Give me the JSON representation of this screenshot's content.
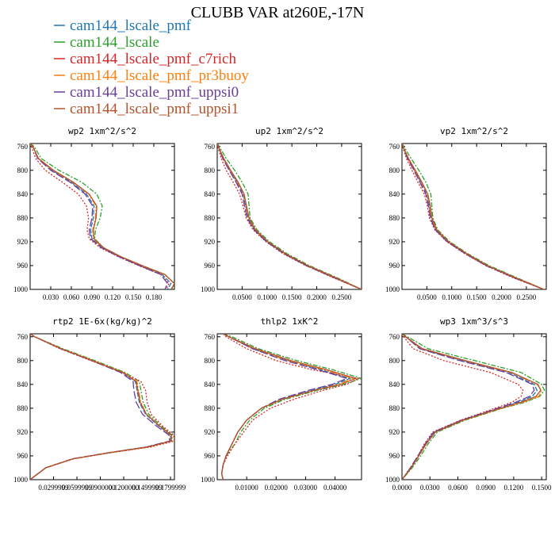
{
  "figure": {
    "title": "CLUBB VAR at260E,-17N"
  },
  "legend": [
    {
      "name": "cam144_lscale_pmf",
      "color": "#1f77b4"
    },
    {
      "name": "cam144_lscale",
      "color": "#2ca02c"
    },
    {
      "name": "cam144_lscale_pmf_c7rich",
      "color": "#d62728"
    },
    {
      "name": "cam144_lscale_pmf_pr3buoy",
      "color": "#ff7f0e"
    },
    {
      "name": "cam144_lscale_pmf_uppsi0",
      "color": "#6a3d9a"
    },
    {
      "name": "cam144_lscale_pmf_uppsi1",
      "color": "#b5532a"
    }
  ],
  "chart_data": [
    {
      "type": "line",
      "title": "wp2   1xm^2/s^2",
      "xlim": [
        0,
        0.21
      ],
      "ylim": [
        1000,
        755
      ],
      "xticks": [
        0.03,
        0.06,
        0.09,
        0.12,
        0.15,
        0.18
      ],
      "xtick_labels": [
        "0.030",
        "0.060",
        "0.090",
        "0.120",
        "0.150",
        "0.180"
      ],
      "yticks": [
        760,
        800,
        840,
        880,
        920,
        960,
        1000
      ],
      "ytick_labels": [
        "760",
        "800",
        "840",
        "880",
        "920",
        "960",
        "1000"
      ],
      "y": [
        755,
        760,
        780,
        800,
        820,
        840,
        860,
        880,
        900,
        915,
        930,
        945,
        960,
        975,
        990,
        1000
      ],
      "series": [
        {
          "name": "cam144_lscale_pmf",
          "x": [
            0.0,
            0.004,
            0.012,
            0.032,
            0.06,
            0.082,
            0.093,
            0.092,
            0.088,
            0.09,
            0.105,
            0.13,
            0.16,
            0.192,
            0.205,
            0.2
          ]
        },
        {
          "name": "cam144_lscale",
          "x": [
            0.0,
            0.006,
            0.016,
            0.042,
            0.075,
            0.097,
            0.105,
            0.102,
            0.095,
            0.094,
            0.107,
            0.132,
            0.163,
            0.196,
            0.21,
            0.205
          ]
        },
        {
          "name": "cam144_lscale_pmf_c7rich",
          "x": [
            0.0,
            0.002,
            0.008,
            0.022,
            0.047,
            0.07,
            0.082,
            0.085,
            0.083,
            0.086,
            0.102,
            0.128,
            0.158,
            0.19,
            0.202,
            0.198
          ]
        },
        {
          "name": "cam144_lscale_pmf_pr3buoy",
          "x": [
            0.0,
            0.004,
            0.012,
            0.033,
            0.062,
            0.085,
            0.096,
            0.095,
            0.091,
            0.092,
            0.106,
            0.131,
            0.162,
            0.195,
            0.21,
            0.206
          ]
        },
        {
          "name": "cam144_lscale_pmf_uppsi0",
          "x": [
            0.0,
            0.004,
            0.011,
            0.03,
            0.058,
            0.08,
            0.091,
            0.09,
            0.086,
            0.088,
            0.104,
            0.129,
            0.159,
            0.19,
            0.2,
            0.196
          ]
        },
        {
          "name": "cam144_lscale_pmf_uppsi1",
          "x": [
            0.0,
            0.004,
            0.012,
            0.034,
            0.063,
            0.086,
            0.097,
            0.096,
            0.092,
            0.093,
            0.107,
            0.132,
            0.163,
            0.196,
            0.21,
            0.206
          ]
        }
      ]
    },
    {
      "type": "line",
      "title": "up2   1xm^2/s^2",
      "xlim": [
        0,
        0.29
      ],
      "ylim": [
        1000,
        755
      ],
      "xticks": [
        0.05,
        0.1,
        0.15,
        0.2,
        0.25
      ],
      "xtick_labels": [
        "0.0500",
        "0.1000",
        "0.1500",
        "0.2000",
        "0.2500"
      ],
      "yticks": [
        760,
        800,
        840,
        880,
        920,
        960,
        1000
      ],
      "ytick_labels": [
        "760",
        "800",
        "840",
        "880",
        "920",
        "960",
        "1000"
      ],
      "y": [
        755,
        760,
        780,
        800,
        820,
        840,
        860,
        880,
        900,
        920,
        940,
        960,
        980,
        1000
      ],
      "series": [
        {
          "name": "cam144_lscale_pmf",
          "x": [
            0.0,
            0.002,
            0.012,
            0.025,
            0.04,
            0.052,
            0.057,
            0.062,
            0.075,
            0.1,
            0.135,
            0.18,
            0.235,
            0.29
          ]
        },
        {
          "name": "cam144_lscale",
          "x": [
            0.0,
            0.004,
            0.018,
            0.035,
            0.05,
            0.062,
            0.064,
            0.066,
            0.08,
            0.105,
            0.14,
            0.185,
            0.24,
            0.29
          ]
        },
        {
          "name": "cam144_lscale_pmf_c7rich",
          "x": [
            0.0,
            0.001,
            0.008,
            0.018,
            0.032,
            0.045,
            0.052,
            0.058,
            0.072,
            0.098,
            0.132,
            0.178,
            0.232,
            0.29
          ]
        },
        {
          "name": "cam144_lscale_pmf_pr3buoy",
          "x": [
            0.0,
            0.002,
            0.012,
            0.026,
            0.041,
            0.053,
            0.058,
            0.063,
            0.076,
            0.101,
            0.136,
            0.181,
            0.236,
            0.29
          ]
        },
        {
          "name": "cam144_lscale_pmf_uppsi0",
          "x": [
            0.0,
            0.002,
            0.011,
            0.024,
            0.038,
            0.05,
            0.055,
            0.06,
            0.074,
            0.099,
            0.134,
            0.179,
            0.234,
            0.29
          ]
        },
        {
          "name": "cam144_lscale_pmf_uppsi1",
          "x": [
            0.0,
            0.002,
            0.013,
            0.027,
            0.042,
            0.054,
            0.059,
            0.064,
            0.077,
            0.102,
            0.137,
            0.182,
            0.237,
            0.29
          ]
        }
      ]
    },
    {
      "type": "line",
      "title": "vp2   1xm^2/s^2",
      "xlim": [
        0,
        0.29
      ],
      "ylim": [
        1000,
        755
      ],
      "xticks": [
        0.05,
        0.1,
        0.15,
        0.2,
        0.25
      ],
      "xtick_labels": [
        "0.0500",
        "0.1000",
        "0.1500",
        "0.2000",
        "0.2500"
      ],
      "yticks": [
        760,
        800,
        840,
        880,
        920,
        960,
        1000
      ],
      "ytick_labels": [
        "760",
        "800",
        "840",
        "880",
        "920",
        "960",
        "1000"
      ],
      "y": [
        755,
        760,
        780,
        800,
        820,
        840,
        860,
        880,
        900,
        920,
        940,
        960,
        980,
        1000
      ],
      "series": [
        {
          "name": "cam144_lscale_pmf",
          "x": [
            0.0,
            0.002,
            0.012,
            0.025,
            0.038,
            0.05,
            0.055,
            0.058,
            0.068,
            0.092,
            0.128,
            0.17,
            0.225,
            0.285
          ]
        },
        {
          "name": "cam144_lscale",
          "x": [
            0.0,
            0.004,
            0.018,
            0.034,
            0.048,
            0.058,
            0.06,
            0.062,
            0.072,
            0.096,
            0.132,
            0.175,
            0.23,
            0.285
          ]
        },
        {
          "name": "cam144_lscale_pmf_c7rich",
          "x": [
            0.0,
            0.001,
            0.009,
            0.02,
            0.032,
            0.045,
            0.051,
            0.055,
            0.066,
            0.09,
            0.126,
            0.168,
            0.222,
            0.285
          ]
        },
        {
          "name": "cam144_lscale_pmf_pr3buoy",
          "x": [
            0.0,
            0.002,
            0.012,
            0.026,
            0.039,
            0.051,
            0.056,
            0.059,
            0.069,
            0.093,
            0.129,
            0.171,
            0.226,
            0.285
          ]
        },
        {
          "name": "cam144_lscale_pmf_uppsi0",
          "x": [
            0.0,
            0.002,
            0.011,
            0.024,
            0.036,
            0.048,
            0.053,
            0.057,
            0.067,
            0.091,
            0.127,
            0.169,
            0.224,
            0.285
          ]
        },
        {
          "name": "cam144_lscale_pmf_uppsi1",
          "x": [
            0.0,
            0.002,
            0.013,
            0.027,
            0.04,
            0.052,
            0.057,
            0.06,
            0.07,
            0.094,
            0.13,
            0.172,
            0.227,
            0.285
          ]
        }
      ]
    },
    {
      "type": "line",
      "title": "rtp2   1E-6x(kg/kg)^2",
      "xlim": [
        0,
        0.185
      ],
      "ylim": [
        1000,
        755
      ],
      "xticks": [
        0.03,
        0.06,
        0.09,
        0.12,
        0.15,
        0.18
      ],
      "xtick_labels": [
        "0.0299999",
        "0.0599999",
        "0.0900000",
        "0.1200000",
        "0.1499999",
        "0.1799999"
      ],
      "yticks": [
        760,
        800,
        840,
        880,
        920,
        960,
        1000
      ],
      "ytick_labels": [
        "760",
        "800",
        "840",
        "880",
        "920",
        "960",
        "1000"
      ],
      "y": [
        755,
        760,
        780,
        800,
        820,
        835,
        850,
        870,
        890,
        910,
        925,
        935,
        945,
        955,
        965,
        980,
        995,
        1000
      ],
      "series": [
        {
          "name": "cam144_lscale_pmf",
          "x": [
            0.0,
            0.006,
            0.04,
            0.08,
            0.118,
            0.135,
            0.137,
            0.14,
            0.148,
            0.165,
            0.18,
            0.18,
            0.15,
            0.1,
            0.055,
            0.02,
            0.005,
            0.0
          ]
        },
        {
          "name": "cam144_lscale",
          "x": [
            0.0,
            0.006,
            0.042,
            0.083,
            0.122,
            0.14,
            0.142,
            0.145,
            0.152,
            0.168,
            0.182,
            0.182,
            0.152,
            0.1,
            0.055,
            0.02,
            0.005,
            0.0
          ]
        },
        {
          "name": "cam144_lscale_pmf_c7rich",
          "x": [
            0.0,
            0.006,
            0.038,
            0.078,
            0.118,
            0.142,
            0.148,
            0.15,
            0.155,
            0.17,
            0.184,
            0.185,
            0.155,
            0.102,
            0.056,
            0.02,
            0.005,
            0.0
          ]
        },
        {
          "name": "cam144_lscale_pmf_pr3buoy",
          "x": [
            0.0,
            0.006,
            0.04,
            0.081,
            0.12,
            0.137,
            0.139,
            0.142,
            0.149,
            0.166,
            0.18,
            0.181,
            0.151,
            0.1,
            0.055,
            0.02,
            0.005,
            0.0
          ]
        },
        {
          "name": "cam144_lscale_pmf_uppsi0",
          "x": [
            0.0,
            0.006,
            0.039,
            0.079,
            0.116,
            0.132,
            0.133,
            0.136,
            0.144,
            0.162,
            0.178,
            0.179,
            0.149,
            0.099,
            0.054,
            0.02,
            0.005,
            0.0
          ]
        },
        {
          "name": "cam144_lscale_pmf_uppsi1",
          "x": [
            0.0,
            0.006,
            0.04,
            0.08,
            0.119,
            0.136,
            0.138,
            0.141,
            0.149,
            0.166,
            0.181,
            0.181,
            0.151,
            0.1,
            0.055,
            0.02,
            0.005,
            0.0
          ]
        }
      ]
    },
    {
      "type": "line",
      "title": "thlp2   1xK^2",
      "xlim": [
        0,
        0.049
      ],
      "ylim": [
        1000,
        755
      ],
      "xticks": [
        0.01,
        0.02,
        0.03,
        0.04
      ],
      "xtick_labels": [
        "0.01000",
        "0.02000",
        "0.03000",
        "0.04000"
      ],
      "yticks": [
        760,
        800,
        840,
        880,
        920,
        960,
        1000
      ],
      "ytick_labels": [
        "760",
        "800",
        "840",
        "880",
        "920",
        "960",
        "1000"
      ],
      "y": [
        755,
        760,
        780,
        800,
        815,
        830,
        840,
        850,
        865,
        880,
        900,
        920,
        940,
        960,
        975,
        990,
        1000
      ],
      "series": [
        {
          "name": "cam144_lscale_pmf",
          "x": [
            0.002,
            0.004,
            0.012,
            0.024,
            0.035,
            0.045,
            0.04,
            0.032,
            0.022,
            0.015,
            0.01,
            0.007,
            0.005,
            0.003,
            0.002,
            0.0015,
            0.002
          ]
        },
        {
          "name": "cam144_lscale",
          "x": [
            0.002,
            0.005,
            0.014,
            0.027,
            0.039,
            0.049,
            0.043,
            0.034,
            0.023,
            0.016,
            0.011,
            0.008,
            0.006,
            0.003,
            0.002,
            0.0015,
            0.002
          ]
        },
        {
          "name": "cam144_lscale_pmf_c7rich",
          "x": [
            0.002,
            0.003,
            0.01,
            0.02,
            0.032,
            0.048,
            0.044,
            0.036,
            0.026,
            0.018,
            0.012,
            0.009,
            0.006,
            0.0035,
            0.002,
            0.0015,
            0.002
          ]
        },
        {
          "name": "cam144_lscale_pmf_pr3buoy",
          "x": [
            0.002,
            0.004,
            0.012,
            0.024,
            0.036,
            0.046,
            0.041,
            0.033,
            0.022,
            0.015,
            0.01,
            0.007,
            0.005,
            0.003,
            0.002,
            0.0015,
            0.002
          ]
        },
        {
          "name": "cam144_lscale_pmf_uppsi0",
          "x": [
            0.002,
            0.004,
            0.012,
            0.023,
            0.034,
            0.044,
            0.039,
            0.031,
            0.021,
            0.015,
            0.01,
            0.007,
            0.005,
            0.003,
            0.002,
            0.0015,
            0.002
          ]
        },
        {
          "name": "cam144_lscale_pmf_uppsi1",
          "x": [
            0.002,
            0.004,
            0.013,
            0.025,
            0.037,
            0.047,
            0.042,
            0.033,
            0.022,
            0.015,
            0.01,
            0.007,
            0.005,
            0.003,
            0.002,
            0.0015,
            0.002
          ]
        }
      ]
    },
    {
      "type": "line",
      "title": "wp3   1xm^3/s^3",
      "xlim": [
        0,
        0.155
      ],
      "ylim": [
        1000,
        755
      ],
      "xticks": [
        0.0,
        0.03,
        0.06,
        0.09,
        0.12,
        0.15
      ],
      "xtick_labels": [
        "0.0000",
        "0.0300",
        "0.0600",
        "0.0900",
        "0.1200",
        "0.1500"
      ],
      "yticks": [
        760,
        800,
        840,
        880,
        920,
        960,
        1000
      ],
      "ytick_labels": [
        "760",
        "800",
        "840",
        "880",
        "920",
        "960",
        "1000"
      ],
      "y": [
        755,
        760,
        780,
        800,
        820,
        840,
        850,
        860,
        870,
        880,
        900,
        920,
        940,
        960,
        980,
        1000
      ],
      "series": [
        {
          "name": "cam144_lscale_pmf",
          "x": [
            0.0,
            0.004,
            0.02,
            0.065,
            0.115,
            0.142,
            0.145,
            0.14,
            0.125,
            0.105,
            0.065,
            0.035,
            0.025,
            0.018,
            0.01,
            0.0
          ]
        },
        {
          "name": "cam144_lscale",
          "x": [
            0.0,
            0.006,
            0.028,
            0.078,
            0.128,
            0.15,
            0.153,
            0.148,
            0.132,
            0.108,
            0.068,
            0.038,
            0.028,
            0.02,
            0.011,
            0.0
          ]
        },
        {
          "name": "cam144_lscale_pmf_c7rich",
          "x": [
            0.0,
            0.002,
            0.012,
            0.045,
            0.095,
            0.125,
            0.13,
            0.128,
            0.118,
            0.1,
            0.063,
            0.033,
            0.024,
            0.017,
            0.009,
            0.0
          ]
        },
        {
          "name": "cam144_lscale_pmf_pr3buoy",
          "x": [
            0.0,
            0.004,
            0.021,
            0.067,
            0.117,
            0.145,
            0.15,
            0.147,
            0.13,
            0.107,
            0.066,
            0.036,
            0.026,
            0.018,
            0.01,
            0.0
          ]
        },
        {
          "name": "cam144_lscale_pmf_uppsi0",
          "x": [
            0.0,
            0.004,
            0.019,
            0.062,
            0.112,
            0.14,
            0.142,
            0.137,
            0.122,
            0.103,
            0.064,
            0.034,
            0.025,
            0.017,
            0.009,
            0.0
          ]
        },
        {
          "name": "cam144_lscale_pmf_uppsi1",
          "x": [
            0.0,
            0.004,
            0.022,
            0.068,
            0.118,
            0.146,
            0.149,
            0.144,
            0.128,
            0.106,
            0.066,
            0.036,
            0.026,
            0.018,
            0.01,
            0.0
          ]
        }
      ]
    }
  ]
}
